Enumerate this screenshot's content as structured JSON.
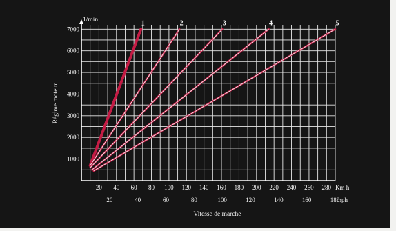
{
  "chart_data": {
    "type": "line",
    "y_unit_label": "1/min",
    "ylabel": "Régime moteur",
    "xlabel": "Vitesse de marche",
    "x_unit_kmh": "Km h",
    "x_unit_mph": "mph",
    "x_ticks_kmh": [
      "20",
      "40",
      "60",
      "80",
      "100",
      "120",
      "140",
      "160",
      "180",
      "200",
      "220",
      "240",
      "260",
      "280"
    ],
    "x_ticks_mph": [
      "20",
      "40",
      "60",
      "80",
      "100",
      "120",
      "140",
      "160",
      "180"
    ],
    "y_ticks": [
      "1000",
      "2000",
      "3000",
      "4000",
      "5000",
      "6000",
      "7000"
    ],
    "xlim": [
      0,
      290
    ],
    "ylim": [
      0,
      7200
    ],
    "grid": true,
    "series": [
      {
        "name": "1",
        "color": "#d8204a",
        "points": [
          [
            10,
            700
          ],
          [
            68,
            7000
          ]
        ]
      },
      {
        "name": "2",
        "color": "#e5e5e5",
        "points": [
          [
            10,
            700
          ],
          [
            112,
            7000
          ]
        ]
      },
      {
        "name": "3",
        "color": "#e5e5e5",
        "points": [
          [
            10,
            600
          ],
          [
            161,
            7000
          ]
        ]
      },
      {
        "name": "4",
        "color": "#e5e5e5",
        "points": [
          [
            12,
            500
          ],
          [
            214,
            7000
          ]
        ]
      },
      {
        "name": "5",
        "color": "#e5e5e5",
        "points": [
          [
            14,
            450
          ],
          [
            290,
            7000
          ]
        ]
      }
    ]
  }
}
